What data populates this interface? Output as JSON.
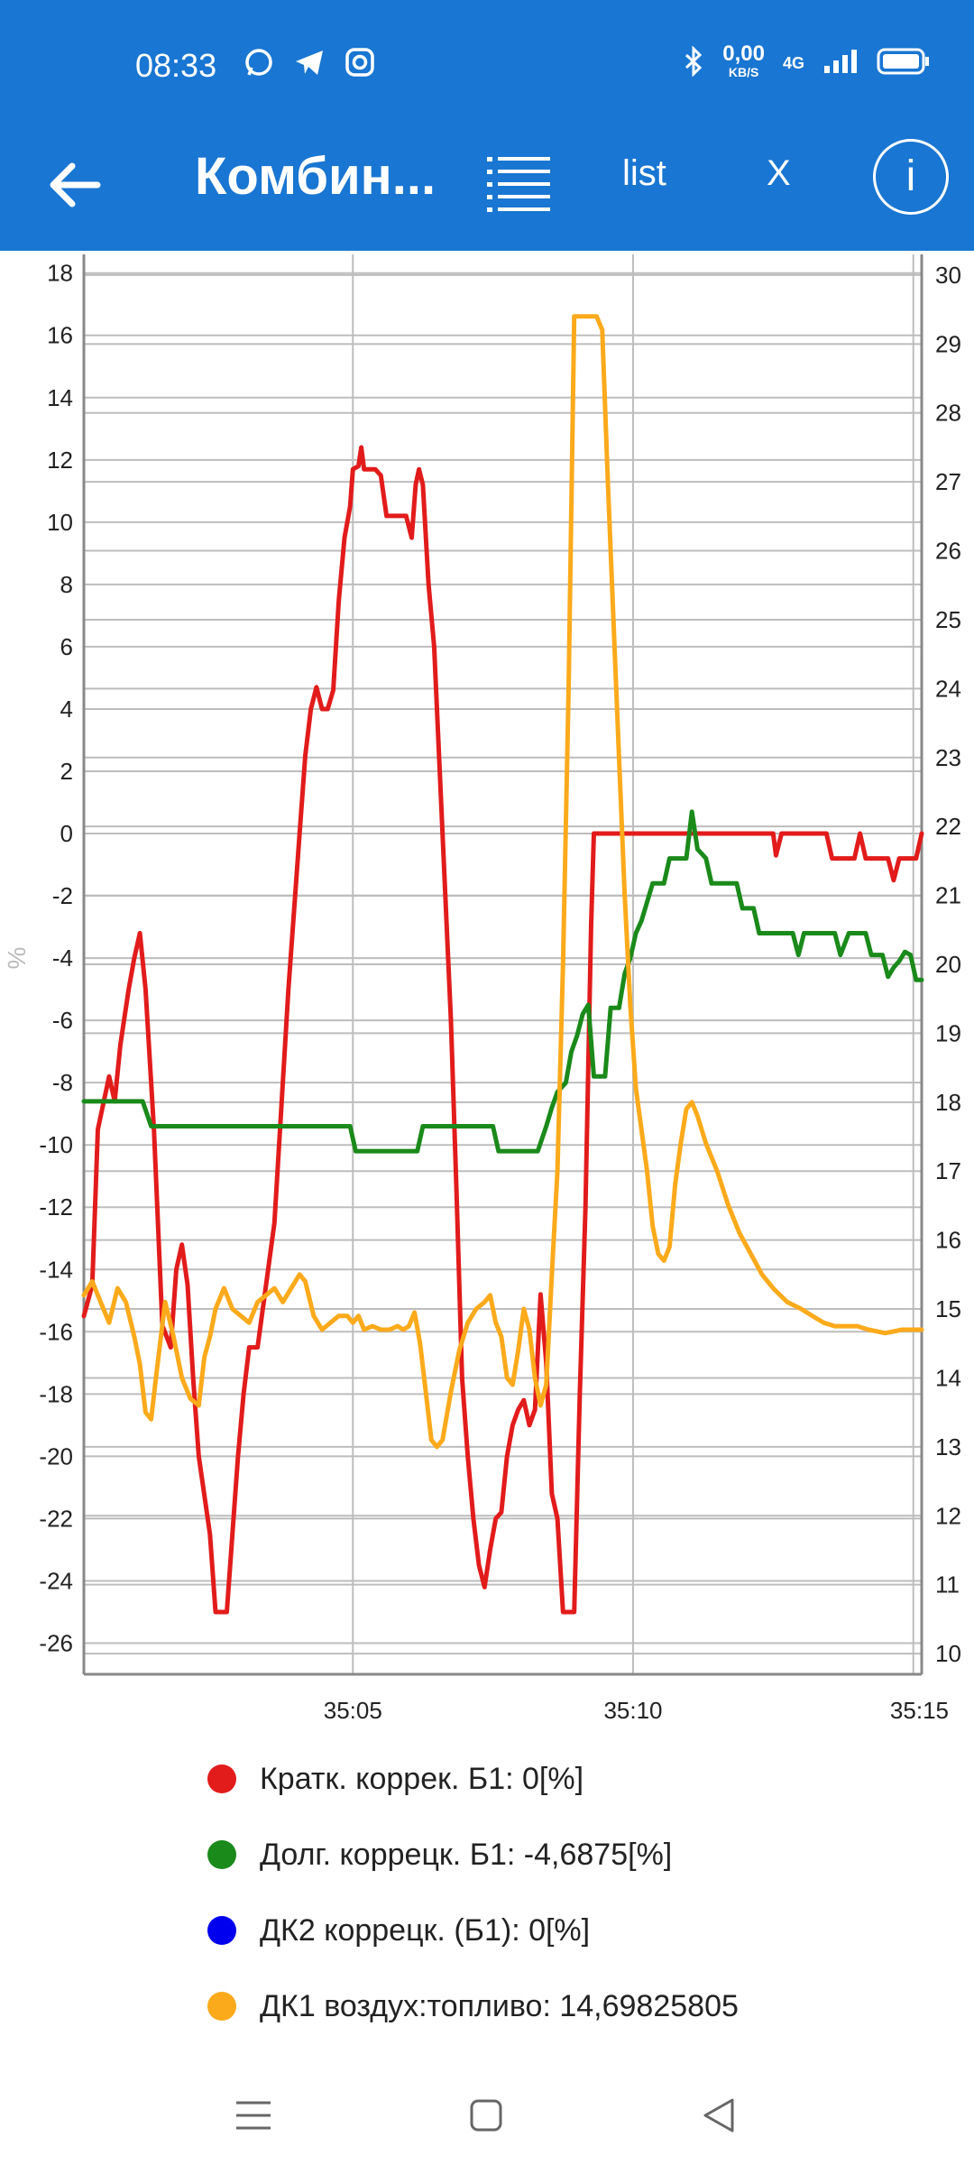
{
  "status_bar": {
    "time": "08:33",
    "net_speed_value": "0,00",
    "net_speed_unit": "KB/S",
    "network": "4G",
    "icons": [
      "whatsapp-icon",
      "telegram-icon",
      "instagram-icon",
      "bluetooth-icon",
      "signal-icon",
      "battery-icon"
    ]
  },
  "toolbar": {
    "title": "Комбин...",
    "list_label": "list",
    "close_label": "X",
    "info_label": "i"
  },
  "colors": {
    "appbar": "#1976d2",
    "short_trim": "#e21b1b",
    "long_trim": "#1a8a1a",
    "o2s2": "#0000ee",
    "o2s1": "#fbaa1b"
  },
  "chart_data": {
    "type": "line",
    "left_axis": {
      "label": "%",
      "ylim": [
        -27,
        18.6
      ],
      "ticks": [
        18,
        16,
        14,
        12,
        10,
        8,
        6,
        4,
        2,
        0,
        -2,
        -4,
        -6,
        -8,
        -10,
        -12,
        -14,
        -16,
        -18,
        -20,
        -22,
        -24,
        -26
      ]
    },
    "right_axis": {
      "ylim": [
        9.7,
        30.3
      ],
      "ticks": [
        30,
        29,
        28,
        27,
        26,
        25,
        24,
        23,
        22,
        21,
        20,
        19,
        18,
        17,
        16,
        15,
        14,
        13,
        12,
        11,
        10
      ]
    },
    "x_axis": {
      "xlim": [
        0.2,
        15.15
      ],
      "ticks": [
        {
          "value": 5,
          "label": "35:05"
        },
        {
          "value": 10,
          "label": "35:10"
        },
        {
          "value": 15,
          "label": "35:15"
        }
      ]
    },
    "grid": true,
    "series": [
      {
        "name": "Кратк. коррек. Б1",
        "axis": "left",
        "color": "#e21b1b",
        "points": [
          [
            0.2,
            -15.5
          ],
          [
            0.35,
            -14.5
          ],
          [
            0.45,
            -9.5
          ],
          [
            0.65,
            -7.8
          ],
          [
            0.75,
            -8.6
          ],
          [
            0.85,
            -6.8
          ],
          [
            1.0,
            -5
          ],
          [
            1.1,
            -4
          ],
          [
            1.2,
            -3.2
          ],
          [
            1.3,
            -5
          ],
          [
            1.45,
            -9.5
          ],
          [
            1.6,
            -15.8
          ],
          [
            1.75,
            -16.5
          ],
          [
            1.85,
            -14
          ],
          [
            1.95,
            -13.2
          ],
          [
            2.05,
            -14.5
          ],
          [
            2.15,
            -17.5
          ],
          [
            2.25,
            -20
          ],
          [
            2.45,
            -22.5
          ],
          [
            2.55,
            -25
          ],
          [
            2.75,
            -25
          ],
          [
            2.85,
            -22.5
          ],
          [
            2.95,
            -20
          ],
          [
            3.05,
            -18
          ],
          [
            3.15,
            -16.5
          ],
          [
            3.3,
            -16.5
          ],
          [
            3.45,
            -14.5
          ],
          [
            3.6,
            -12.5
          ],
          [
            3.75,
            -8
          ],
          [
            3.85,
            -5
          ],
          [
            3.95,
            -2.5
          ],
          [
            4.05,
            0
          ],
          [
            4.15,
            2.5
          ],
          [
            4.25,
            4
          ],
          [
            4.35,
            4.7
          ],
          [
            4.45,
            4
          ],
          [
            4.55,
            4
          ],
          [
            4.65,
            4.6
          ],
          [
            4.75,
            7.5
          ],
          [
            4.85,
            9.5
          ],
          [
            4.95,
            10.5
          ],
          [
            5.0,
            11.7
          ],
          [
            5.1,
            11.8
          ],
          [
            5.15,
            12.4
          ],
          [
            5.2,
            11.7
          ],
          [
            5.4,
            11.7
          ],
          [
            5.5,
            11.5
          ],
          [
            5.6,
            10.2
          ],
          [
            5.8,
            10.2
          ],
          [
            5.95,
            10.2
          ],
          [
            6.05,
            9.5
          ],
          [
            6.12,
            11.2
          ],
          [
            6.18,
            11.7
          ],
          [
            6.25,
            11.2
          ],
          [
            6.35,
            8
          ],
          [
            6.45,
            6
          ],
          [
            6.6,
            0
          ],
          [
            6.75,
            -6
          ],
          [
            6.85,
            -11.5
          ],
          [
            6.95,
            -17.5
          ],
          [
            7.05,
            -20
          ],
          [
            7.15,
            -22
          ],
          [
            7.25,
            -23.5
          ],
          [
            7.35,
            -24.2
          ],
          [
            7.45,
            -23
          ],
          [
            7.55,
            -22
          ],
          [
            7.65,
            -21.8
          ],
          [
            7.75,
            -20
          ],
          [
            7.85,
            -19
          ],
          [
            7.95,
            -18.5
          ],
          [
            8.05,
            -18.2
          ],
          [
            8.15,
            -19
          ],
          [
            8.25,
            -18.5
          ],
          [
            8.35,
            -14.8
          ],
          [
            8.45,
            -17
          ],
          [
            8.55,
            -21.2
          ],
          [
            8.65,
            -22
          ],
          [
            8.75,
            -25
          ],
          [
            8.95,
            -25
          ],
          [
            9.05,
            -18
          ],
          [
            9.15,
            -12
          ],
          [
            9.25,
            -3
          ],
          [
            9.3,
            0
          ],
          [
            10,
            0
          ],
          [
            11,
            0
          ],
          [
            12,
            0
          ],
          [
            12.5,
            0
          ],
          [
            12.55,
            -0.7
          ],
          [
            12.65,
            0
          ],
          [
            13.45,
            0
          ],
          [
            13.55,
            -0.8
          ],
          [
            13.95,
            -0.8
          ],
          [
            14.05,
            0
          ],
          [
            14.15,
            -0.8
          ],
          [
            14.55,
            -0.8
          ],
          [
            14.65,
            -1.5
          ],
          [
            14.75,
            -0.8
          ],
          [
            15.05,
            -0.8
          ],
          [
            15.15,
            0
          ]
        ]
      },
      {
        "name": "Долг. коррецк. Б1",
        "axis": "left",
        "color": "#1a8a1a",
        "points": [
          [
            0.2,
            -8.6
          ],
          [
            1.25,
            -8.6
          ],
          [
            1.4,
            -9.4
          ],
          [
            2.5,
            -9.4
          ],
          [
            3.5,
            -9.4
          ],
          [
            4.5,
            -9.4
          ],
          [
            4.95,
            -9.4
          ],
          [
            5.05,
            -10.2
          ],
          [
            6.15,
            -10.2
          ],
          [
            6.25,
            -9.4
          ],
          [
            7.5,
            -9.4
          ],
          [
            7.6,
            -10.2
          ],
          [
            8.3,
            -10.2
          ],
          [
            8.45,
            -9.4
          ],
          [
            8.55,
            -8.8
          ],
          [
            8.65,
            -8.3
          ],
          [
            8.8,
            -8
          ],
          [
            8.9,
            -7
          ],
          [
            9.0,
            -6.5
          ],
          [
            9.1,
            -5.8
          ],
          [
            9.2,
            -5.5
          ],
          [
            9.3,
            -7.8
          ],
          [
            9.5,
            -7.8
          ],
          [
            9.6,
            -5.6
          ],
          [
            9.75,
            -5.6
          ],
          [
            9.85,
            -4.5
          ],
          [
            9.95,
            -4
          ],
          [
            10.05,
            -3.2
          ],
          [
            10.15,
            -2.8
          ],
          [
            10.25,
            -2.2
          ],
          [
            10.35,
            -1.6
          ],
          [
            10.55,
            -1.6
          ],
          [
            10.65,
            -0.8
          ],
          [
            10.95,
            -0.8
          ],
          [
            11.05,
            0.7
          ],
          [
            11.15,
            -0.5
          ],
          [
            11.3,
            -0.8
          ],
          [
            11.4,
            -1.6
          ],
          [
            11.85,
            -1.6
          ],
          [
            11.95,
            -2.4
          ],
          [
            12.15,
            -2.4
          ],
          [
            12.25,
            -3.2
          ],
          [
            12.85,
            -3.2
          ],
          [
            12.95,
            -3.9
          ],
          [
            13.05,
            -3.2
          ],
          [
            13.6,
            -3.2
          ],
          [
            13.7,
            -3.9
          ],
          [
            13.85,
            -3.2
          ],
          [
            14.15,
            -3.2
          ],
          [
            14.25,
            -3.9
          ],
          [
            14.45,
            -3.9
          ],
          [
            14.55,
            -4.6
          ],
          [
            14.65,
            -4.3
          ],
          [
            14.75,
            -4.1
          ],
          [
            14.85,
            -3.8
          ],
          [
            14.95,
            -3.9
          ],
          [
            15.05,
            -4.7
          ],
          [
            15.15,
            -4.7
          ]
        ]
      },
      {
        "name": "ДК2 коррецк. (Б1)",
        "axis": "left",
        "color": "#0000ee",
        "points": []
      },
      {
        "name": "ДК1 воздух:топливо",
        "axis": "right",
        "color": "#fbaa1b",
        "points": [
          [
            0.2,
            15.2
          ],
          [
            0.35,
            15.4
          ],
          [
            0.5,
            15.1
          ],
          [
            0.65,
            14.8
          ],
          [
            0.8,
            15.3
          ],
          [
            0.95,
            15.1
          ],
          [
            1.1,
            14.6
          ],
          [
            1.2,
            14.2
          ],
          [
            1.3,
            13.5
          ],
          [
            1.4,
            13.4
          ],
          [
            1.5,
            14.1
          ],
          [
            1.65,
            15.1
          ],
          [
            1.8,
            14.6
          ],
          [
            1.95,
            14
          ],
          [
            2.1,
            13.7
          ],
          [
            2.25,
            13.6
          ],
          [
            2.35,
            14.3
          ],
          [
            2.45,
            14.6
          ],
          [
            2.55,
            15
          ],
          [
            2.7,
            15.3
          ],
          [
            2.85,
            15
          ],
          [
            3.0,
            14.9
          ],
          [
            3.15,
            14.8
          ],
          [
            3.3,
            15.1
          ],
          [
            3.45,
            15.2
          ],
          [
            3.6,
            15.3
          ],
          [
            3.75,
            15.1
          ],
          [
            3.9,
            15.3
          ],
          [
            4.05,
            15.5
          ],
          [
            4.15,
            15.4
          ],
          [
            4.3,
            14.9
          ],
          [
            4.45,
            14.7
          ],
          [
            4.6,
            14.8
          ],
          [
            4.75,
            14.9
          ],
          [
            4.9,
            14.9
          ],
          [
            5.0,
            14.8
          ],
          [
            5.1,
            14.9
          ],
          [
            5.2,
            14.7
          ],
          [
            5.35,
            14.75
          ],
          [
            5.5,
            14.7
          ],
          [
            5.65,
            14.7
          ],
          [
            5.8,
            14.75
          ],
          [
            5.9,
            14.7
          ],
          [
            6.0,
            14.75
          ],
          [
            6.1,
            14.95
          ],
          [
            6.2,
            14.5
          ],
          [
            6.3,
            13.8
          ],
          [
            6.4,
            13.1
          ],
          [
            6.5,
            13
          ],
          [
            6.6,
            13.1
          ],
          [
            6.75,
            13.8
          ],
          [
            6.9,
            14.4
          ],
          [
            7.05,
            14.8
          ],
          [
            7.2,
            15
          ],
          [
            7.35,
            15.1
          ],
          [
            7.45,
            15.2
          ],
          [
            7.55,
            14.8
          ],
          [
            7.65,
            14.6
          ],
          [
            7.75,
            14
          ],
          [
            7.85,
            13.9
          ],
          [
            7.95,
            14.4
          ],
          [
            8.05,
            15
          ],
          [
            8.15,
            14.7
          ],
          [
            8.25,
            14
          ],
          [
            8.35,
            13.6
          ],
          [
            8.45,
            13.9
          ],
          [
            8.55,
            15.5
          ],
          [
            8.65,
            17
          ],
          [
            8.75,
            20
          ],
          [
            8.85,
            24
          ],
          [
            8.95,
            29.4
          ],
          [
            9.1,
            29.4
          ],
          [
            9.35,
            29.4
          ],
          [
            9.45,
            29.2
          ],
          [
            9.55,
            27
          ],
          [
            9.65,
            25
          ],
          [
            9.75,
            23
          ],
          [
            9.85,
            21
          ],
          [
            9.95,
            19.4
          ],
          [
            10.05,
            18.2
          ],
          [
            10.15,
            17.6
          ],
          [
            10.25,
            17
          ],
          [
            10.35,
            16.2
          ],
          [
            10.45,
            15.8
          ],
          [
            10.55,
            15.7
          ],
          [
            10.65,
            15.9
          ],
          [
            10.75,
            16.8
          ],
          [
            10.85,
            17.4
          ],
          [
            10.95,
            17.9
          ],
          [
            11.05,
            18
          ],
          [
            11.15,
            17.8
          ],
          [
            11.3,
            17.4
          ],
          [
            11.5,
            17
          ],
          [
            11.7,
            16.5
          ],
          [
            11.9,
            16.1
          ],
          [
            12.1,
            15.8
          ],
          [
            12.3,
            15.5
          ],
          [
            12.5,
            15.3
          ],
          [
            12.75,
            15.1
          ],
          [
            13.0,
            15
          ],
          [
            13.2,
            14.9
          ],
          [
            13.4,
            14.8
          ],
          [
            13.6,
            14.75
          ],
          [
            14.0,
            14.75
          ],
          [
            14.2,
            14.7
          ],
          [
            14.5,
            14.65
          ],
          [
            14.8,
            14.7
          ],
          [
            15.15,
            14.7
          ]
        ]
      }
    ],
    "legend": [
      {
        "label": "Кратк. коррек. Б1: 0[%]",
        "color": "#e21b1b"
      },
      {
        "label": "Долг. коррецк. Б1: -4,6875[%]",
        "color": "#1a8a1a"
      },
      {
        "label": "ДК2 коррецк. (Б1): 0[%]",
        "color": "#0000ee"
      },
      {
        "label": "ДК1 воздух:топливо: 14,69825805",
        "color": "#fbaa1b"
      }
    ]
  }
}
